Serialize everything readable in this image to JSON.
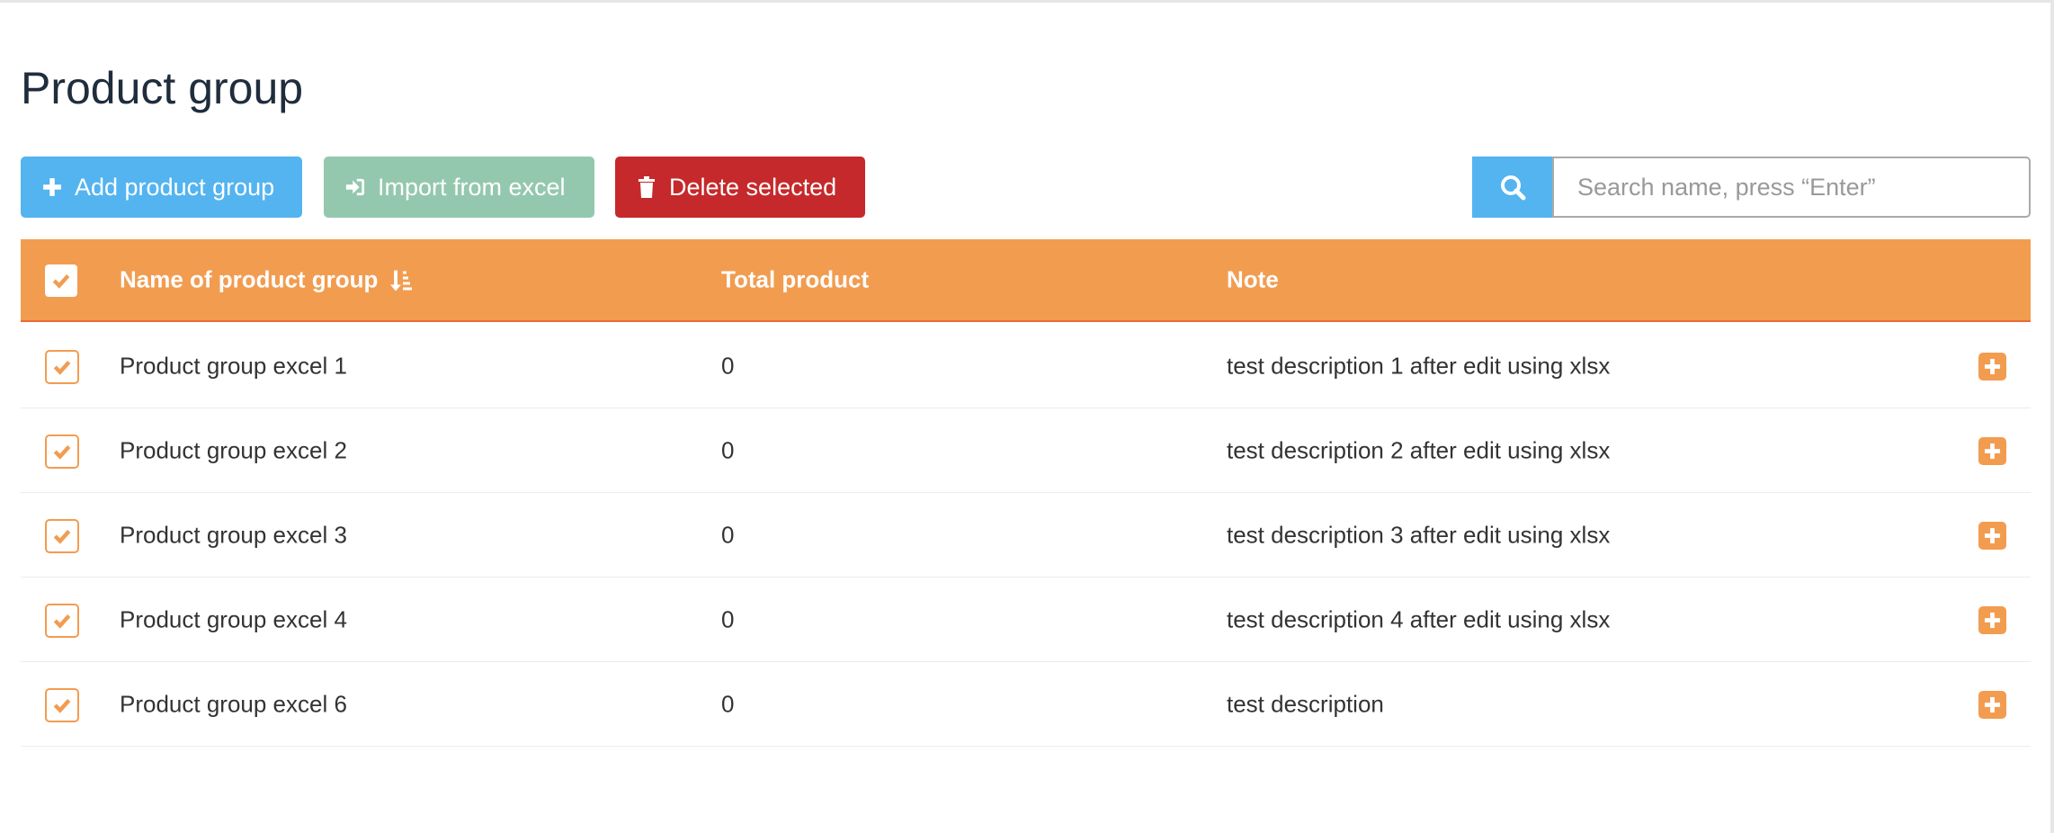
{
  "page": {
    "title": "Product group"
  },
  "toolbar": {
    "add_label": "Add product group",
    "import_label": "Import from excel",
    "delete_label": "Delete selected"
  },
  "search": {
    "placeholder": "Search name, press “Enter”",
    "value": ""
  },
  "table": {
    "headers": {
      "name": "Name of product group",
      "total": "Total product",
      "note": "Note"
    },
    "header_checked": true,
    "sort": "name-ascending",
    "rows": [
      {
        "name": "Product group excel 1",
        "total": "0",
        "note": "test description 1 after edit using xlsx",
        "checked": true
      },
      {
        "name": "Product group excel 2",
        "total": "0",
        "note": "test description 2 after edit using xlsx",
        "checked": true
      },
      {
        "name": "Product group excel 3",
        "total": "0",
        "note": "test description 3 after edit using xlsx",
        "checked": true
      },
      {
        "name": "Product group excel 4",
        "total": "0",
        "note": "test description 4 after edit using xlsx",
        "checked": true
      },
      {
        "name": "Product group excel 6",
        "total": "0",
        "note": "test description",
        "checked": true
      }
    ]
  },
  "colors": {
    "accent": "#f29c50",
    "primary": "#53b4f0",
    "import": "#94c8ae",
    "danger": "#c6292b"
  }
}
